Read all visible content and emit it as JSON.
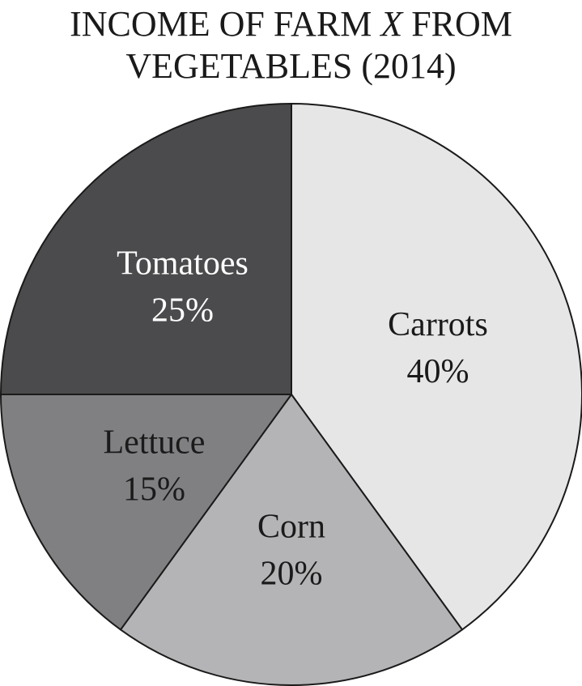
{
  "chart_data": {
    "type": "pie",
    "title_line1_before": "INCOME OF FARM ",
    "title_line1_italic": "X",
    "title_line1_after": " FROM",
    "title_line2": "VEGETABLES (2014)",
    "slices": [
      {
        "label": "Carrots",
        "value": 40,
        "value_label": "40%",
        "color": "#e6e6e6",
        "text_color": "#1a1a1a"
      },
      {
        "label": "Corn",
        "value": 20,
        "value_label": "20%",
        "color": "#b4b4b6",
        "text_color": "#1a1a1a"
      },
      {
        "label": "Lettuce",
        "value": 15,
        "value_label": "15%",
        "color": "#808083",
        "text_color": "#1a1a1a"
      },
      {
        "label": "Tomatoes",
        "value": 25,
        "value_label": "25%",
        "color": "#4b4b4d",
        "text_color": "#ffffff"
      }
    ],
    "start_angle": "top",
    "direction": "clockwise",
    "legend": "none"
  }
}
